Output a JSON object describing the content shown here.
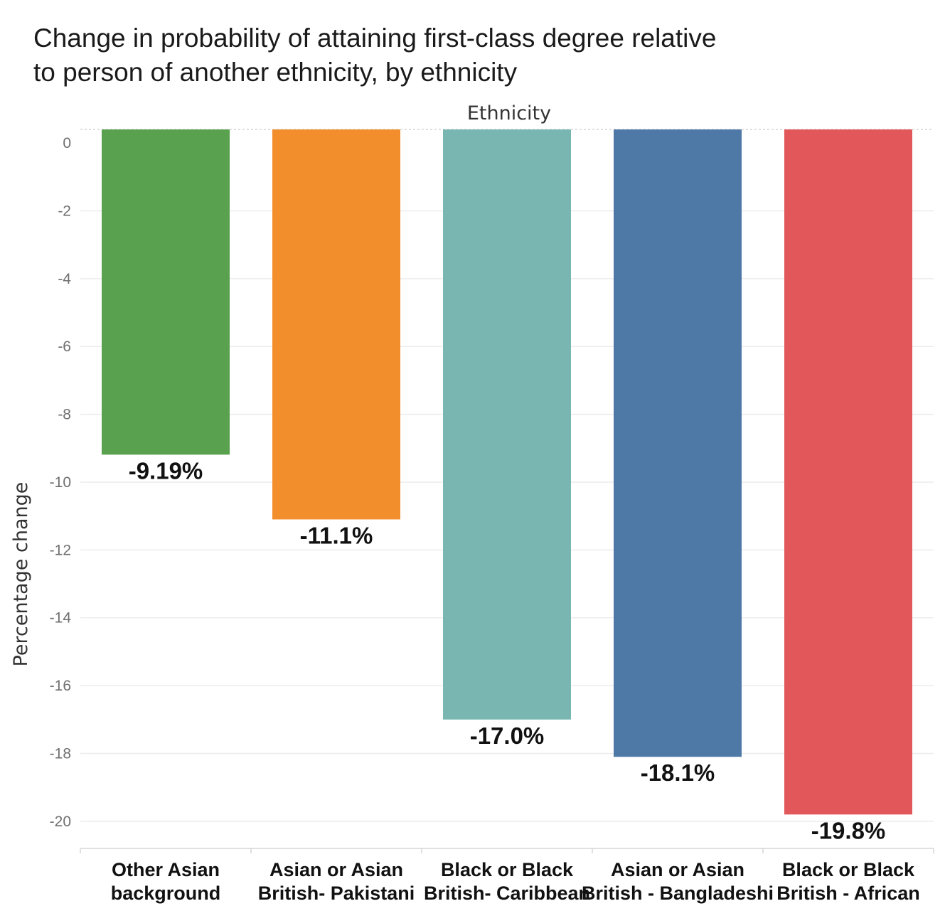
{
  "title": {
    "line1": "Change in probability of attaining first-class degree relative",
    "line2": "to person of another ethnicity, by ethnicity"
  },
  "chart_data": {
    "type": "bar",
    "title": "Change in probability of attaining first-class degree relative to person of another ethnicity, by ethnicity",
    "x_header": "Ethnicity",
    "ylabel": "Percentage change",
    "ylim": [
      -20.8,
      0.4
    ],
    "yticks": [
      0,
      -2,
      -4,
      -6,
      -8,
      -10,
      -12,
      -14,
      -16,
      -18,
      -20
    ],
    "grid": true,
    "categories": [
      [
        "Other Asian",
        "background"
      ],
      [
        "Asian or Asian",
        "British- Pakistani"
      ],
      [
        "Black or Black",
        "British- Caribbean"
      ],
      [
        "Asian or Asian",
        "British - Bangladeshi"
      ],
      [
        "Black or Black",
        "British - African"
      ]
    ],
    "values": [
      -9.19,
      -11.1,
      -17.0,
      -18.1,
      -19.8
    ],
    "data_labels": [
      "-9.19%",
      "-11.1%",
      "-17.0%",
      "-18.1%",
      "-19.8%"
    ],
    "colors": [
      "#59a14f",
      "#f28e2b",
      "#7ab6b1",
      "#4e79a7",
      "#e1575a"
    ]
  }
}
